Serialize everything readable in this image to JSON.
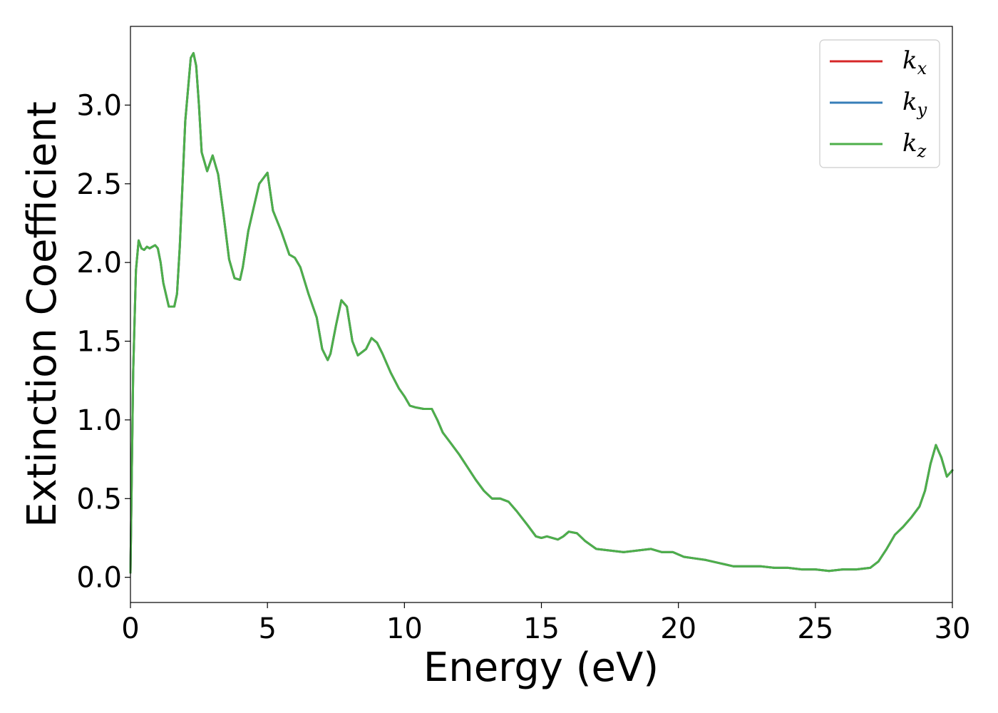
{
  "chart_data": {
    "type": "line",
    "xlabel": "Energy (eV)",
    "ylabel": "Extinction Coefficient",
    "xlim": [
      0,
      30
    ],
    "ylim": [
      -0.16,
      3.5
    ],
    "xticks": [
      0,
      5,
      10,
      15,
      20,
      25,
      30
    ],
    "xtick_labels": [
      "0",
      "5",
      "10",
      "15",
      "20",
      "25",
      "30"
    ],
    "yticks": [
      0.0,
      0.5,
      1.0,
      1.5,
      2.0,
      2.5,
      3.0
    ],
    "ytick_labels": [
      "0.0",
      "0.5",
      "1.0",
      "1.5",
      "2.0",
      "2.5",
      "3.0"
    ],
    "grid": false,
    "legend_position": "top-right",
    "legend": [
      {
        "base": "k",
        "sub": "x",
        "color": "#d62728"
      },
      {
        "base": "k",
        "sub": "y",
        "color": "#377eb8"
      },
      {
        "base": "k",
        "sub": "z",
        "color": "#4daf4a"
      }
    ],
    "x": [
      0,
      0.1,
      0.2,
      0.3,
      0.4,
      0.5,
      0.6,
      0.7,
      0.8,
      0.9,
      1.0,
      1.1,
      1.2,
      1.4,
      1.6,
      1.7,
      1.8,
      2.0,
      2.2,
      2.3,
      2.4,
      2.5,
      2.6,
      2.8,
      3.0,
      3.2,
      3.4,
      3.6,
      3.8,
      4.0,
      4.1,
      4.3,
      4.5,
      4.7,
      5.0,
      5.2,
      5.5,
      5.8,
      6.0,
      6.2,
      6.5,
      6.8,
      7.0,
      7.2,
      7.3,
      7.5,
      7.7,
      7.9,
      8.1,
      8.3,
      8.6,
      8.8,
      9.0,
      9.2,
      9.5,
      9.8,
      10.0,
      10.2,
      10.4,
      10.7,
      11.0,
      11.2,
      11.4,
      11.7,
      12.0,
      12.3,
      12.6,
      12.9,
      13.2,
      13.5,
      13.8,
      14.1,
      14.5,
      14.8,
      15.0,
      15.2,
      15.6,
      15.8,
      16.0,
      16.3,
      16.6,
      17.0,
      17.5,
      18.0,
      18.5,
      19.0,
      19.4,
      19.8,
      20.2,
      20.6,
      21.0,
      21.5,
      22.0,
      22.5,
      23.0,
      23.5,
      24.0,
      24.5,
      25.0,
      25.5,
      26.0,
      26.5,
      27.0,
      27.3,
      27.6,
      27.9,
      28.2,
      28.5,
      28.8,
      29.0,
      29.2,
      29.4,
      29.6,
      29.8,
      30.0
    ],
    "series": [
      {
        "name": "k_x",
        "values": [
          0.03,
          1.3,
          1.95,
          2.14,
          2.09,
          2.08,
          2.1,
          2.09,
          2.1,
          2.11,
          2.09,
          2.0,
          1.87,
          1.72,
          1.72,
          1.8,
          2.1,
          2.9,
          3.3,
          3.33,
          3.25,
          3.0,
          2.7,
          2.58,
          2.68,
          2.56,
          2.3,
          2.02,
          1.9,
          1.89,
          1.97,
          2.2,
          2.35,
          2.5,
          2.57,
          2.33,
          2.2,
          2.05,
          2.03,
          1.97,
          1.8,
          1.65,
          1.45,
          1.38,
          1.42,
          1.6,
          1.76,
          1.72,
          1.5,
          1.41,
          1.45,
          1.52,
          1.49,
          1.42,
          1.3,
          1.2,
          1.15,
          1.09,
          1.08,
          1.07,
          1.07,
          1.0,
          0.92,
          0.85,
          0.78,
          0.7,
          0.62,
          0.55,
          0.5,
          0.5,
          0.48,
          0.42,
          0.33,
          0.26,
          0.25,
          0.26,
          0.24,
          0.26,
          0.29,
          0.28,
          0.23,
          0.18,
          0.17,
          0.16,
          0.17,
          0.18,
          0.16,
          0.16,
          0.13,
          0.12,
          0.11,
          0.09,
          0.07,
          0.07,
          0.07,
          0.06,
          0.06,
          0.05,
          0.05,
          0.04,
          0.05,
          0.05,
          0.06,
          0.1,
          0.18,
          0.27,
          0.32,
          0.38,
          0.45,
          0.55,
          0.72,
          0.84,
          0.76,
          0.64,
          0.68
        ]
      },
      {
        "name": "k_y",
        "values": [
          0.03,
          1.3,
          1.95,
          2.14,
          2.09,
          2.08,
          2.1,
          2.09,
          2.1,
          2.11,
          2.09,
          2.0,
          1.87,
          1.72,
          1.72,
          1.8,
          2.1,
          2.9,
          3.3,
          3.33,
          3.25,
          3.0,
          2.7,
          2.58,
          2.68,
          2.56,
          2.3,
          2.02,
          1.9,
          1.89,
          1.97,
          2.2,
          2.35,
          2.5,
          2.57,
          2.33,
          2.2,
          2.05,
          2.03,
          1.97,
          1.8,
          1.65,
          1.45,
          1.38,
          1.42,
          1.6,
          1.76,
          1.72,
          1.5,
          1.41,
          1.45,
          1.52,
          1.49,
          1.42,
          1.3,
          1.2,
          1.15,
          1.09,
          1.08,
          1.07,
          1.07,
          1.0,
          0.92,
          0.85,
          0.78,
          0.7,
          0.62,
          0.55,
          0.5,
          0.5,
          0.48,
          0.42,
          0.33,
          0.26,
          0.25,
          0.26,
          0.24,
          0.26,
          0.29,
          0.28,
          0.23,
          0.18,
          0.17,
          0.16,
          0.17,
          0.18,
          0.16,
          0.16,
          0.13,
          0.12,
          0.11,
          0.09,
          0.07,
          0.07,
          0.07,
          0.06,
          0.06,
          0.05,
          0.05,
          0.04,
          0.05,
          0.05,
          0.06,
          0.1,
          0.18,
          0.27,
          0.32,
          0.38,
          0.45,
          0.55,
          0.72,
          0.84,
          0.76,
          0.64,
          0.68
        ]
      },
      {
        "name": "k_z",
        "values": [
          0.03,
          1.3,
          1.95,
          2.14,
          2.09,
          2.08,
          2.1,
          2.09,
          2.1,
          2.11,
          2.09,
          2.0,
          1.87,
          1.72,
          1.72,
          1.8,
          2.1,
          2.9,
          3.3,
          3.33,
          3.25,
          3.0,
          2.7,
          2.58,
          2.68,
          2.56,
          2.3,
          2.02,
          1.9,
          1.89,
          1.97,
          2.2,
          2.35,
          2.5,
          2.57,
          2.33,
          2.2,
          2.05,
          2.03,
          1.97,
          1.8,
          1.65,
          1.45,
          1.38,
          1.42,
          1.6,
          1.76,
          1.72,
          1.5,
          1.41,
          1.45,
          1.52,
          1.49,
          1.42,
          1.3,
          1.2,
          1.15,
          1.09,
          1.08,
          1.07,
          1.07,
          1.0,
          0.92,
          0.85,
          0.78,
          0.7,
          0.62,
          0.55,
          0.5,
          0.5,
          0.48,
          0.42,
          0.33,
          0.26,
          0.25,
          0.26,
          0.24,
          0.26,
          0.29,
          0.28,
          0.23,
          0.18,
          0.17,
          0.16,
          0.17,
          0.18,
          0.16,
          0.16,
          0.13,
          0.12,
          0.11,
          0.09,
          0.07,
          0.07,
          0.07,
          0.06,
          0.06,
          0.05,
          0.05,
          0.04,
          0.05,
          0.05,
          0.06,
          0.1,
          0.18,
          0.27,
          0.32,
          0.38,
          0.45,
          0.55,
          0.72,
          0.84,
          0.76,
          0.64,
          0.68
        ]
      }
    ]
  }
}
